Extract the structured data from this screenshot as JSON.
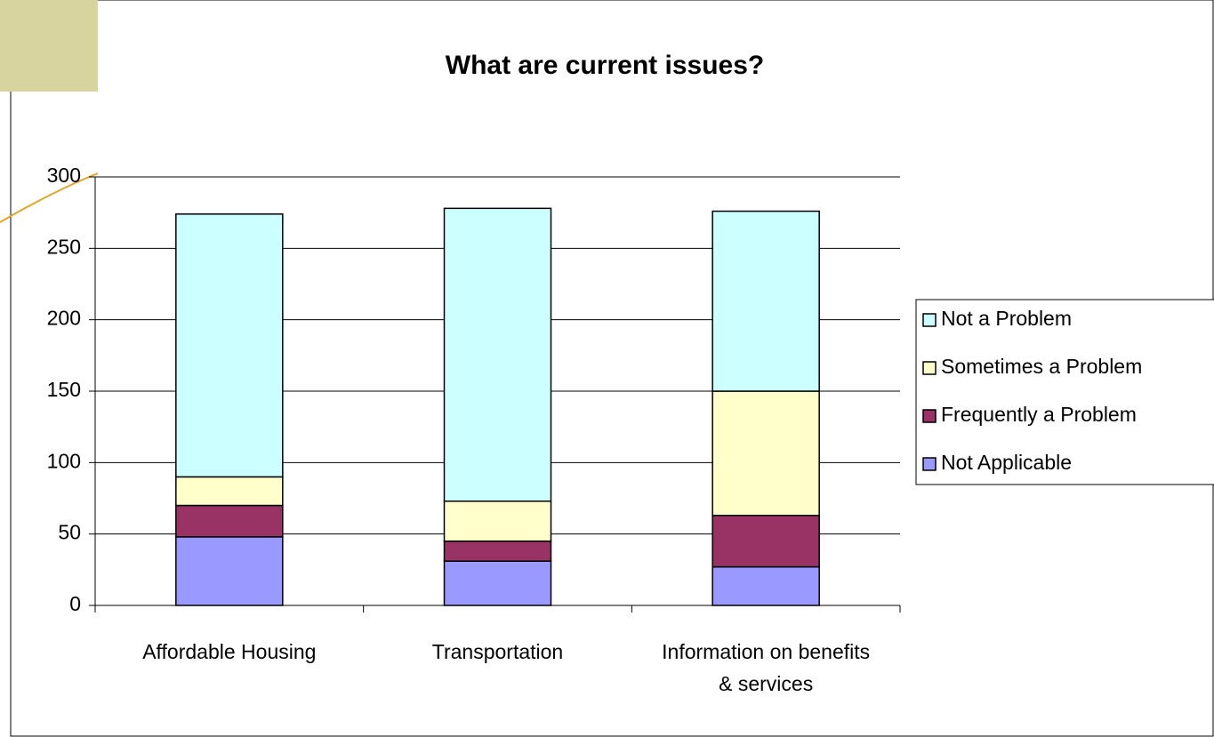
{
  "chart_data": {
    "type": "stacked_bar",
    "title": "What are current issues?",
    "categories": [
      "Affordable Housing",
      "Transportation",
      "Information on benefits & services"
    ],
    "series": [
      {
        "name": "Not Applicable",
        "color": "#9999ff",
        "values": [
          48,
          31,
          27
        ]
      },
      {
        "name": "Frequently a Problem",
        "color": "#993366",
        "values": [
          22,
          14,
          36
        ]
      },
      {
        "name": "Sometimes a Problem",
        "color": "#ffffcc",
        "values": [
          20,
          28,
          87
        ]
      },
      {
        "name": "Not a Problem",
        "color": "#ccffff",
        "values": [
          184,
          205,
          126
        ]
      }
    ],
    "ylim": [
      0,
      300
    ],
    "yticks": [
      0,
      50,
      100,
      150,
      200,
      250,
      300
    ],
    "grid": true,
    "legend": "right"
  }
}
